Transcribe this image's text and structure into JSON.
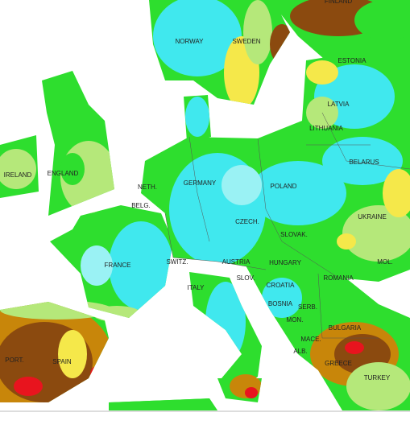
{
  "labels": [
    "FINLAND",
    "NORWAY",
    "SWEDEN",
    "ESTONIA",
    "LATVIA",
    "LITHUANIA",
    "BELARUS",
    "IRELAND",
    "ENGLAND",
    "NETH.",
    "BELG.",
    "GERMANY",
    "POLAND",
    "UKRAINE",
    "CZECH.",
    "SLOVAK.",
    "FRANCE",
    "SWITZ.",
    "AUSTRIA",
    "HUNGARY",
    "MOL.",
    "ITALY",
    "SLOV.",
    "CROATIA",
    "ROMANIA",
    "BOSNIA",
    "SERB.",
    "BULGARIA",
    "MON.",
    "MACE.",
    "ALB.",
    "GREECE",
    "PORT.",
    "SPAIN",
    "TURKEY"
  ]
}
